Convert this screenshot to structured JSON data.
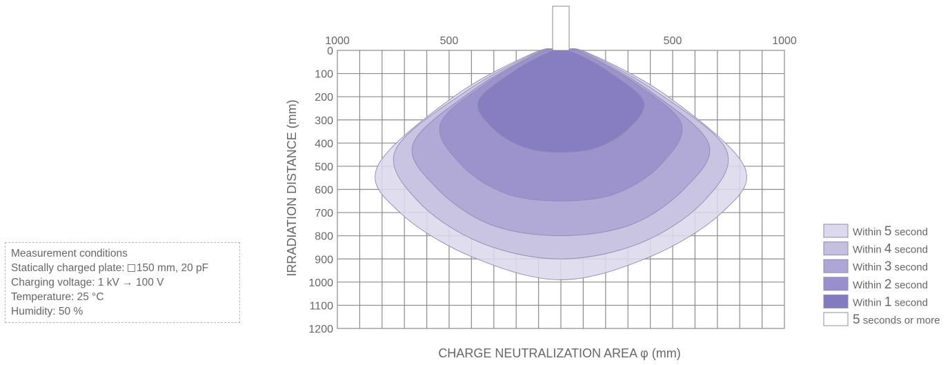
{
  "conditions": {
    "title": "Measurement conditions",
    "plate_label": "Statically charged plate:",
    "plate_value": "150 mm, 20 pF",
    "voltage_label": "Charging voltage:",
    "voltage_from": "1 kV",
    "voltage_arrow": "→",
    "voltage_to": "100 V",
    "temperature": "Temperature: 25 °C",
    "humidity": "Humidity: 50 %"
  },
  "chart_data": {
    "type": "area",
    "xlabel": "CHARGE NEUTRALIZATION AREA φ (mm)",
    "ylabel": "IRRADIATION DISTANCE (mm)",
    "x_tick_labels": [
      "1000",
      "500",
      "500",
      "1000"
    ],
    "x_ticks": [
      -1000,
      -500,
      500,
      1000
    ],
    "xlim": [
      -1000,
      1000
    ],
    "y_ticks": [
      0,
      100,
      200,
      300,
      400,
      500,
      600,
      700,
      800,
      900,
      1000,
      1100,
      1200
    ],
    "ylim": [
      0,
      1200
    ],
    "y_inverted": true,
    "grid": true,
    "legend_position": "bottom-right",
    "series": [
      {
        "name": "Within 5 second",
        "label_prefix": "Within ",
        "label_number": "5",
        "label_suffix": " second",
        "color": "#dcd9ec",
        "outline": [
          [
            -820,
            500
          ],
          [
            -480,
            200
          ],
          [
            -120,
            10
          ],
          [
            0,
            0
          ],
          [
            120,
            10
          ],
          [
            480,
            200
          ],
          [
            820,
            500
          ],
          [
            720,
            700
          ],
          [
            400,
            890
          ],
          [
            0,
            990
          ],
          [
            -400,
            890
          ],
          [
            -720,
            700
          ]
        ]
      },
      {
        "name": "Within 4 second",
        "label_prefix": "Within ",
        "label_number": "4",
        "label_suffix": " second",
        "color": "#c5c0e0",
        "outline": [
          [
            -740,
            430
          ],
          [
            -430,
            180
          ],
          [
            -110,
            10
          ],
          [
            0,
            0
          ],
          [
            110,
            10
          ],
          [
            430,
            180
          ],
          [
            740,
            430
          ],
          [
            640,
            650
          ],
          [
            360,
            830
          ],
          [
            0,
            900
          ],
          [
            -360,
            830
          ],
          [
            -640,
            650
          ]
        ]
      },
      {
        "name": "Within 3 second",
        "label_prefix": "Within ",
        "label_number": "3",
        "label_suffix": " second",
        "color": "#aea6d4",
        "outline": [
          [
            -660,
            400
          ],
          [
            -390,
            170
          ],
          [
            -100,
            10
          ],
          [
            0,
            0
          ],
          [
            100,
            10
          ],
          [
            390,
            170
          ],
          [
            660,
            400
          ],
          [
            560,
            590
          ],
          [
            320,
            750
          ],
          [
            0,
            800
          ],
          [
            -320,
            750
          ],
          [
            -560,
            590
          ]
        ]
      },
      {
        "name": "Within 2 second",
        "label_prefix": "Within ",
        "label_number": "2",
        "label_suffix": " second",
        "color": "#9990cb",
        "outline": [
          [
            -540,
            320
          ],
          [
            -330,
            140
          ],
          [
            -90,
            10
          ],
          [
            0,
            0
          ],
          [
            90,
            10
          ],
          [
            330,
            140
          ],
          [
            540,
            320
          ],
          [
            440,
            500
          ],
          [
            240,
            620
          ],
          [
            0,
            650
          ],
          [
            -240,
            620
          ],
          [
            -440,
            500
          ]
        ]
      },
      {
        "name": "Within 1 second",
        "label_prefix": "Within ",
        "label_number": "1",
        "label_suffix": " second",
        "color": "#837bbf",
        "outline": [
          [
            -370,
            220
          ],
          [
            -210,
            90
          ],
          [
            -60,
            10
          ],
          [
            0,
            0
          ],
          [
            60,
            10
          ],
          [
            210,
            90
          ],
          [
            370,
            220
          ],
          [
            300,
            340
          ],
          [
            160,
            420
          ],
          [
            0,
            440
          ],
          [
            -160,
            420
          ],
          [
            -300,
            340
          ]
        ]
      },
      {
        "name": "5 seconds or more",
        "label_prefix": "",
        "label_number": "5",
        "label_suffix": " seconds or more",
        "color": "#ffffff",
        "outline": []
      }
    ]
  }
}
